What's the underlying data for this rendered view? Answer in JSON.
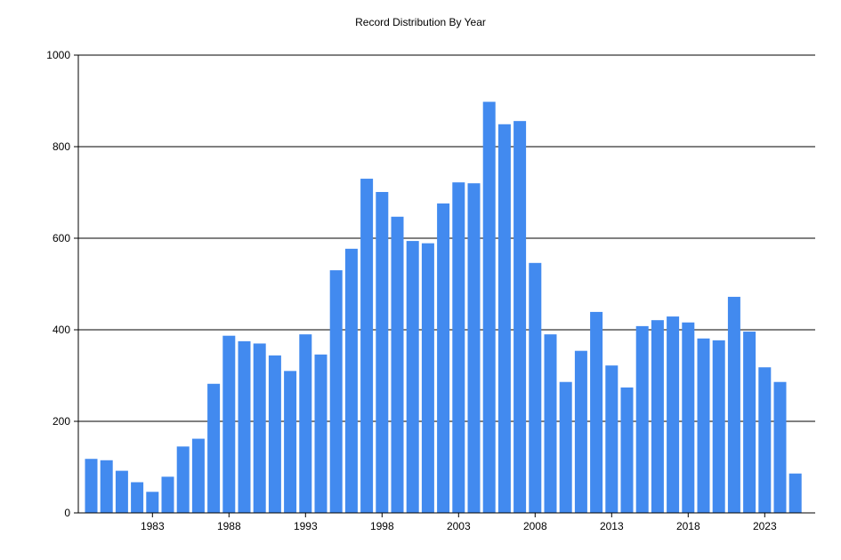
{
  "colors": {
    "background": "#ffffff",
    "bar": "#428aef",
    "grid": "#000000",
    "text": "#000000"
  },
  "chart_data": {
    "type": "bar",
    "title": "Record Distribution By Year",
    "xlabel": "",
    "ylabel": "",
    "ylim": [
      0,
      1000
    ],
    "yticks": [
      0,
      200,
      400,
      600,
      800,
      1000
    ],
    "xticks": [
      1983,
      1988,
      1993,
      1998,
      2003,
      2008,
      2013,
      2018,
      2023
    ],
    "grid": "horizontal",
    "legend": "none",
    "categories": [
      1979,
      1980,
      1981,
      1982,
      1983,
      1984,
      1985,
      1986,
      1987,
      1988,
      1989,
      1990,
      1991,
      1992,
      1993,
      1994,
      1995,
      1996,
      1997,
      1998,
      1999,
      2000,
      2001,
      2002,
      2003,
      2004,
      2005,
      2006,
      2007,
      2008,
      2009,
      2010,
      2011,
      2012,
      2013,
      2014,
      2015,
      2016,
      2017,
      2018,
      2019,
      2020,
      2021,
      2022,
      2023,
      2024,
      2025
    ],
    "values": [
      118,
      115,
      92,
      67,
      46,
      79,
      145,
      162,
      282,
      387,
      375,
      370,
      344,
      310,
      390,
      346,
      530,
      577,
      730,
      701,
      647,
      594,
      589,
      676,
      722,
      720,
      898,
      849,
      856,
      546,
      390,
      286,
      354,
      439,
      322,
      274,
      408,
      421,
      429,
      416,
      381,
      377,
      472,
      396,
      318,
      286,
      86
    ]
  }
}
